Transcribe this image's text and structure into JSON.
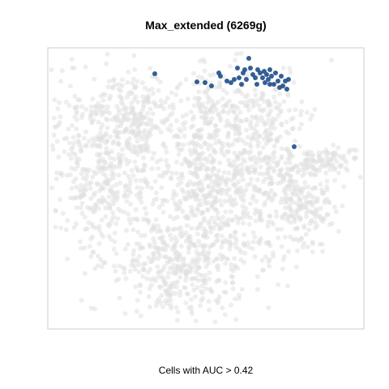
{
  "chart_data": {
    "type": "scatter",
    "title": "Max_extended (6269g)",
    "xlabel": "Cells with AUC > 0.42",
    "ylabel": "",
    "grid": false,
    "legend": "none",
    "axes_visible": false,
    "colors": {
      "background_cells": "#e0e0e0",
      "highlight_cells": "#1f4e89",
      "frame": "#cccccc"
    },
    "series": [
      {
        "role": "highlighted",
        "description_points": [
          [
            191,
            91
          ],
          [
            243,
            101
          ],
          [
            253,
            102
          ],
          [
            261,
            106
          ],
          [
            270,
            90
          ],
          [
            272,
            94
          ],
          [
            280,
            100
          ],
          [
            285,
            102
          ],
          [
            289,
            98
          ],
          [
            295,
            96
          ],
          [
            298,
            104
          ],
          [
            300,
            90
          ],
          [
            302,
            86
          ],
          [
            304,
            98
          ],
          [
            307,
            72
          ],
          [
            309,
            84
          ],
          [
            312,
            92
          ],
          [
            315,
            96
          ],
          [
            318,
            86
          ],
          [
            321,
            90
          ],
          [
            324,
            96
          ],
          [
            326,
            88
          ],
          [
            329,
            92
          ],
          [
            331,
            98
          ],
          [
            333,
            86
          ],
          [
            335,
            94
          ],
          [
            338,
            104
          ],
          [
            340,
            90
          ],
          [
            343,
            100
          ],
          [
            345,
            108
          ],
          [
            347,
            94
          ],
          [
            349,
            106
          ],
          [
            352,
            100
          ],
          [
            354,
            110
          ],
          [
            356,
            98
          ],
          [
            333,
            104
          ],
          [
            327,
            102
          ],
          [
            317,
            104
          ],
          [
            293,
            84
          ],
          [
            363,
            181
          ]
        ]
      }
    ]
  }
}
